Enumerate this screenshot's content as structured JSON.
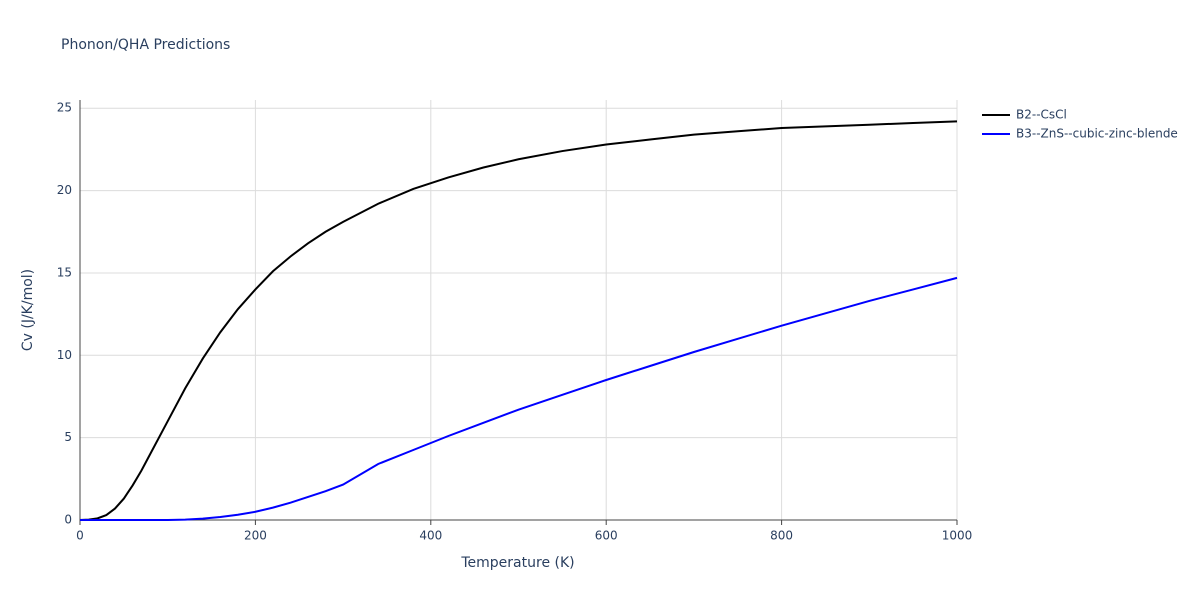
{
  "chart_data": {
    "type": "line",
    "title": "Phonon/QHA Predictions",
    "x_label": "Temperature (K)",
    "y_label": "Cv (J/K/mol)",
    "x": [
      0,
      10,
      20,
      30,
      40,
      50,
      60,
      70,
      80,
      100,
      120,
      140,
      160,
      180,
      200,
      220,
      240,
      260,
      280,
      300,
      340,
      380,
      420,
      460,
      500,
      550,
      600,
      650,
      700,
      750,
      800,
      850,
      900,
      950,
      1000
    ],
    "series": [
      {
        "name": "B2--CsCl",
        "color": "#000000",
        "values": [
          0,
          0.02,
          0.1,
          0.3,
          0.7,
          1.3,
          2.1,
          3.0,
          4.0,
          6.0,
          8.0,
          9.8,
          11.4,
          12.8,
          14.0,
          15.1,
          16.0,
          16.8,
          17.5,
          18.1,
          19.2,
          20.1,
          20.8,
          21.4,
          21.9,
          22.4,
          22.8,
          23.1,
          23.4,
          23.6,
          23.8,
          23.9,
          24.0,
          24.1,
          24.2
        ]
      },
      {
        "name": "B3--ZnS--cubic-zinc-blende",
        "color": "#0000ff",
        "values": [
          0,
          0,
          0,
          0,
          0,
          0,
          0,
          0,
          0,
          0,
          0.02,
          0.08,
          0.18,
          0.32,
          0.5,
          0.75,
          1.05,
          1.4,
          1.75,
          2.15,
          3.4,
          4.25,
          5.1,
          5.9,
          6.7,
          7.6,
          8.5,
          9.35,
          10.2,
          11.0,
          11.8,
          12.55,
          13.3,
          14.0,
          14.7
        ]
      }
    ],
    "xlim": [
      0,
      1000
    ],
    "xticks": [
      0,
      200,
      400,
      600,
      800,
      1000
    ],
    "ylim": [
      0,
      25.5
    ],
    "yticks": [
      0,
      5,
      10,
      15,
      20,
      25
    ],
    "grid": true
  }
}
